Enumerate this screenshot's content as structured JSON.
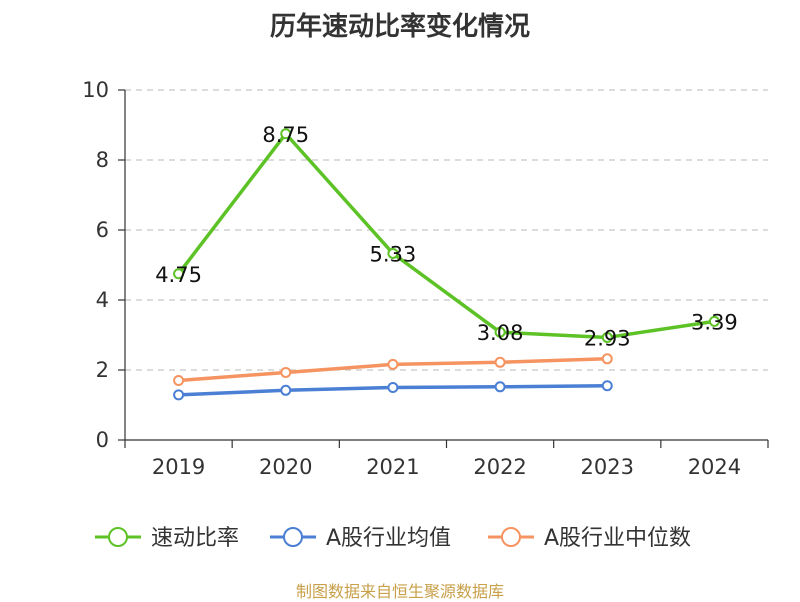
{
  "chart_data": {
    "type": "line",
    "title": "历年速动比率变化情况",
    "categories": [
      "2019",
      "2020",
      "2021",
      "2022",
      "2023",
      "2024"
    ],
    "ylim": [
      0,
      10
    ],
    "yticks": [
      0,
      2,
      4,
      6,
      8,
      10
    ],
    "grid": true,
    "legend_position": "bottom",
    "series": [
      {
        "name": "速动比率",
        "color": "#5cc226",
        "values": [
          4.75,
          8.75,
          5.33,
          3.08,
          2.93,
          3.39
        ],
        "labels": [
          "4.75",
          "8.75",
          "5.33",
          "3.08",
          "2.93",
          "3.39"
        ]
      },
      {
        "name": "A股行业均值",
        "color": "#4a7fd4",
        "values": [
          1.29,
          1.42,
          1.5,
          1.52,
          1.55,
          null
        ]
      },
      {
        "name": "A股行业中位数",
        "color": "#f59460",
        "values": [
          1.7,
          1.93,
          2.16,
          2.22,
          2.32,
          null
        ]
      }
    ]
  },
  "source_note": "制图数据来自恒生聚源数据库"
}
